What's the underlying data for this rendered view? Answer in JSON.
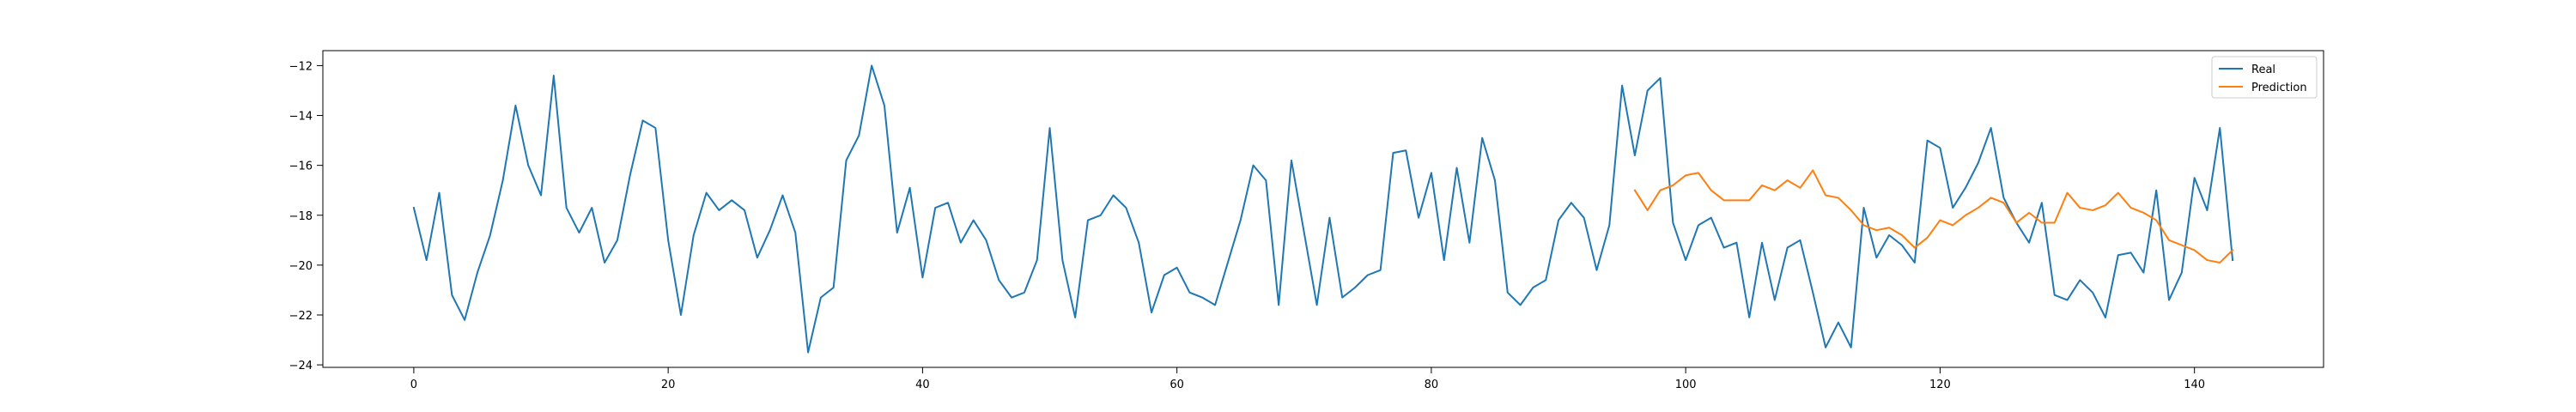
{
  "chart_data": {
    "type": "line",
    "title": "",
    "xlabel": "",
    "ylabel": "",
    "xlim": [
      -7.15,
      150.15
    ],
    "ylim": [
      -24.1,
      -11.4
    ],
    "xticks": [
      0,
      20,
      40,
      60,
      80,
      100,
      120,
      140
    ],
    "yticks": [
      -24,
      -22,
      -20,
      -18,
      -16,
      -14,
      -12
    ],
    "xtick_labels": [
      "0",
      "20",
      "40",
      "60",
      "80",
      "100",
      "120",
      "140"
    ],
    "ytick_labels": [
      "−24",
      "−22",
      "−20",
      "−18",
      "−16",
      "−14",
      "−12"
    ],
    "grid": false,
    "legend_position": "top-right",
    "series": [
      {
        "name": "Real",
        "color": "#1f77b4",
        "x_start": 0,
        "values": [
          -17.7,
          -19.8,
          -17.1,
          -21.2,
          -22.2,
          -20.3,
          -18.8,
          -16.6,
          -13.6,
          -16.0,
          -17.2,
          -12.4,
          -17.7,
          -18.7,
          -17.7,
          -19.9,
          -19.0,
          -16.4,
          -14.2,
          -14.5,
          -19.0,
          -22.0,
          -18.8,
          -17.1,
          -17.8,
          -17.4,
          -17.8,
          -19.7,
          -18.6,
          -17.2,
          -18.7,
          -23.5,
          -21.3,
          -20.9,
          -15.8,
          -14.8,
          -12.0,
          -13.6,
          -18.7,
          -16.9,
          -20.5,
          -17.7,
          -17.5,
          -19.1,
          -18.2,
          -19.0,
          -20.6,
          -21.3,
          -21.1,
          -19.8,
          -14.5,
          -19.8,
          -22.1,
          -18.2,
          -18.0,
          -17.2,
          -17.7,
          -19.1,
          -21.9,
          -20.4,
          -20.1,
          -21.1,
          -21.3,
          -21.6,
          -19.9,
          -18.2,
          -16.0,
          -16.6,
          -21.6,
          -15.8,
          -18.7,
          -21.6,
          -18.1,
          -21.3,
          -20.9,
          -20.4,
          -20.2,
          -15.5,
          -15.4,
          -18.1,
          -16.3,
          -19.8,
          -16.1,
          -19.1,
          -14.9,
          -16.6,
          -21.1,
          -21.6,
          -20.9,
          -20.6,
          -18.2,
          -17.5,
          -18.1,
          -20.2,
          -18.4,
          -12.8,
          -15.6,
          -13.0,
          -12.5,
          -18.3,
          -19.8,
          -18.4,
          -18.1,
          -19.3,
          -19.1,
          -22.1,
          -19.1,
          -21.4,
          -19.3,
          -19.0,
          -21.1,
          -23.3,
          -22.3,
          -23.3,
          -17.7,
          -19.7,
          -18.8,
          -19.2,
          -19.9,
          -15.0,
          -15.3,
          -17.7,
          -16.9,
          -15.9,
          -14.5,
          -17.3,
          -18.3,
          -19.1,
          -17.5,
          -21.2,
          -21.4,
          -20.6,
          -21.1,
          -22.1,
          -19.6,
          -19.5,
          -20.3,
          -17.0,
          -21.4,
          -20.3,
          -16.5,
          -17.8,
          -14.5,
          -19.8
        ]
      },
      {
        "name": "Prediction",
        "color": "#ff7f0e",
        "x_start": 96,
        "values": [
          -17.0,
          -17.8,
          -17.0,
          -16.8,
          -16.4,
          -16.3,
          -17.0,
          -17.4,
          -17.4,
          -17.4,
          -16.8,
          -17.0,
          -16.6,
          -16.9,
          -16.2,
          -17.2,
          -17.3,
          -17.8,
          -18.4,
          -18.6,
          -18.5,
          -18.8,
          -19.3,
          -18.9,
          -18.2,
          -18.4,
          -18.0,
          -17.7,
          -17.3,
          -17.5,
          -18.3,
          -17.9,
          -18.3,
          -18.3,
          -17.1,
          -17.7,
          -17.8,
          -17.6,
          -17.1,
          -17.7,
          -17.9,
          -18.2,
          -19.0,
          -19.2,
          -19.4,
          -19.8,
          -19.9,
          -19.4
        ]
      }
    ]
  }
}
